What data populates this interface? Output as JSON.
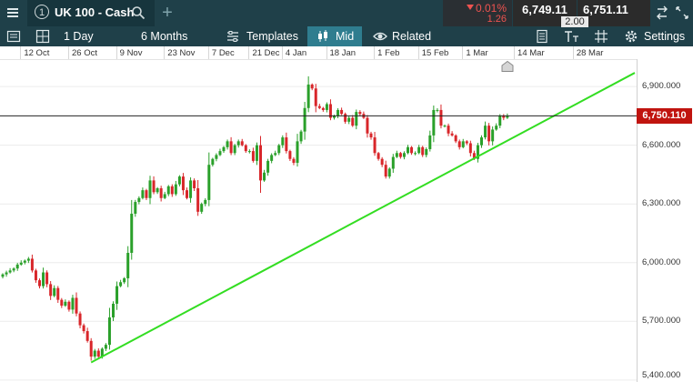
{
  "topbar": {
    "tab_number": "1",
    "instrument": "UK 100 - Cash",
    "change_percent": "0.01%",
    "change_points": "1.26",
    "sell_price": "6,749.11",
    "spread": "2.00",
    "buy_price": "6,751.11"
  },
  "toolbar": {
    "interval": "1 Day",
    "range": "6 Months",
    "templates": "Templates",
    "price_mode": "Mid",
    "related": "Related",
    "settings": "Settings"
  },
  "colors": {
    "up": "#2aa02a",
    "down": "#d8262a",
    "trendline": "#33dd22",
    "last_price": "#c0140f"
  },
  "icons": [
    "menu-icon",
    "search-icon",
    "plus-icon",
    "layout-icon",
    "grid-icon",
    "templates-icon",
    "candle-icon",
    "eye-icon",
    "document-icon",
    "text-size-icon",
    "hash-icon",
    "gear-icon",
    "double-arrow-icon",
    "expand-icon",
    "home-icon"
  ],
  "chart_data": {
    "type": "candlestick",
    "instrument": "UK 100 - Cash",
    "x_tick_labels": [
      "12 Oct",
      "26 Oct",
      "9 Nov",
      "23 Nov",
      "7 Dec",
      "21 Dec",
      "4 Jan",
      "18 Jan",
      "1 Feb",
      "15 Feb",
      "1 Mar",
      "14 Mar",
      "28 Mar"
    ],
    "y_tick_labels": [
      "6,900.000",
      "6,600.000",
      "6,300.000",
      "6,000.000",
      "5,700.000",
      "5,400.000"
    ],
    "y_ticks": [
      6900,
      6600,
      6300,
      6000,
      5700,
      5400
    ],
    "ylim": [
      5390,
      7040
    ],
    "last_price": 6750.11,
    "last_price_label": "6,750.110",
    "trendline": {
      "start": 5490,
      "end": 6970
    },
    "closes": [
      5940,
      5950,
      5960,
      5970,
      5990,
      6000,
      6010,
      6020,
      5960,
      5910,
      5880,
      5950,
      5890,
      5830,
      5870,
      5810,
      5780,
      5800,
      5760,
      5820,
      5740,
      5680,
      5650,
      5600,
      5520,
      5550,
      5520,
      5560,
      5580,
      5720,
      5790,
      5880,
      5900,
      5920,
      6050,
      6250,
      6310,
      6330,
      6370,
      6330,
      6420,
      6360,
      6380,
      6330,
      6350,
      6390,
      6350,
      6400,
      6440,
      6370,
      6330,
      6420,
      6380,
      6260,
      6300,
      6320,
      6500,
      6530,
      6550,
      6570,
      6590,
      6620,
      6560,
      6600,
      6620,
      6600,
      6570,
      6570,
      6520,
      6600,
      6420,
      6460,
      6520,
      6550,
      6560,
      6600,
      6640,
      6570,
      6530,
      6510,
      6620,
      6670,
      6790,
      6910,
      6890,
      6800,
      6790,
      6780,
      6810,
      6740,
      6750,
      6780,
      6760,
      6720,
      6740,
      6700,
      6770,
      6760,
      6740,
      6660,
      6640,
      6560,
      6530,
      6500,
      6440,
      6480,
      6540,
      6560,
      6540,
      6560,
      6590,
      6560,
      6560,
      6590,
      6550,
      6580,
      6650,
      6780,
      6780,
      6700,
      6700,
      6660,
      6650,
      6620,
      6590,
      6620,
      6610,
      6560,
      6530,
      6600,
      6640,
      6700,
      6620,
      6680,
      6700,
      6750,
      6740,
      6750
    ]
  }
}
